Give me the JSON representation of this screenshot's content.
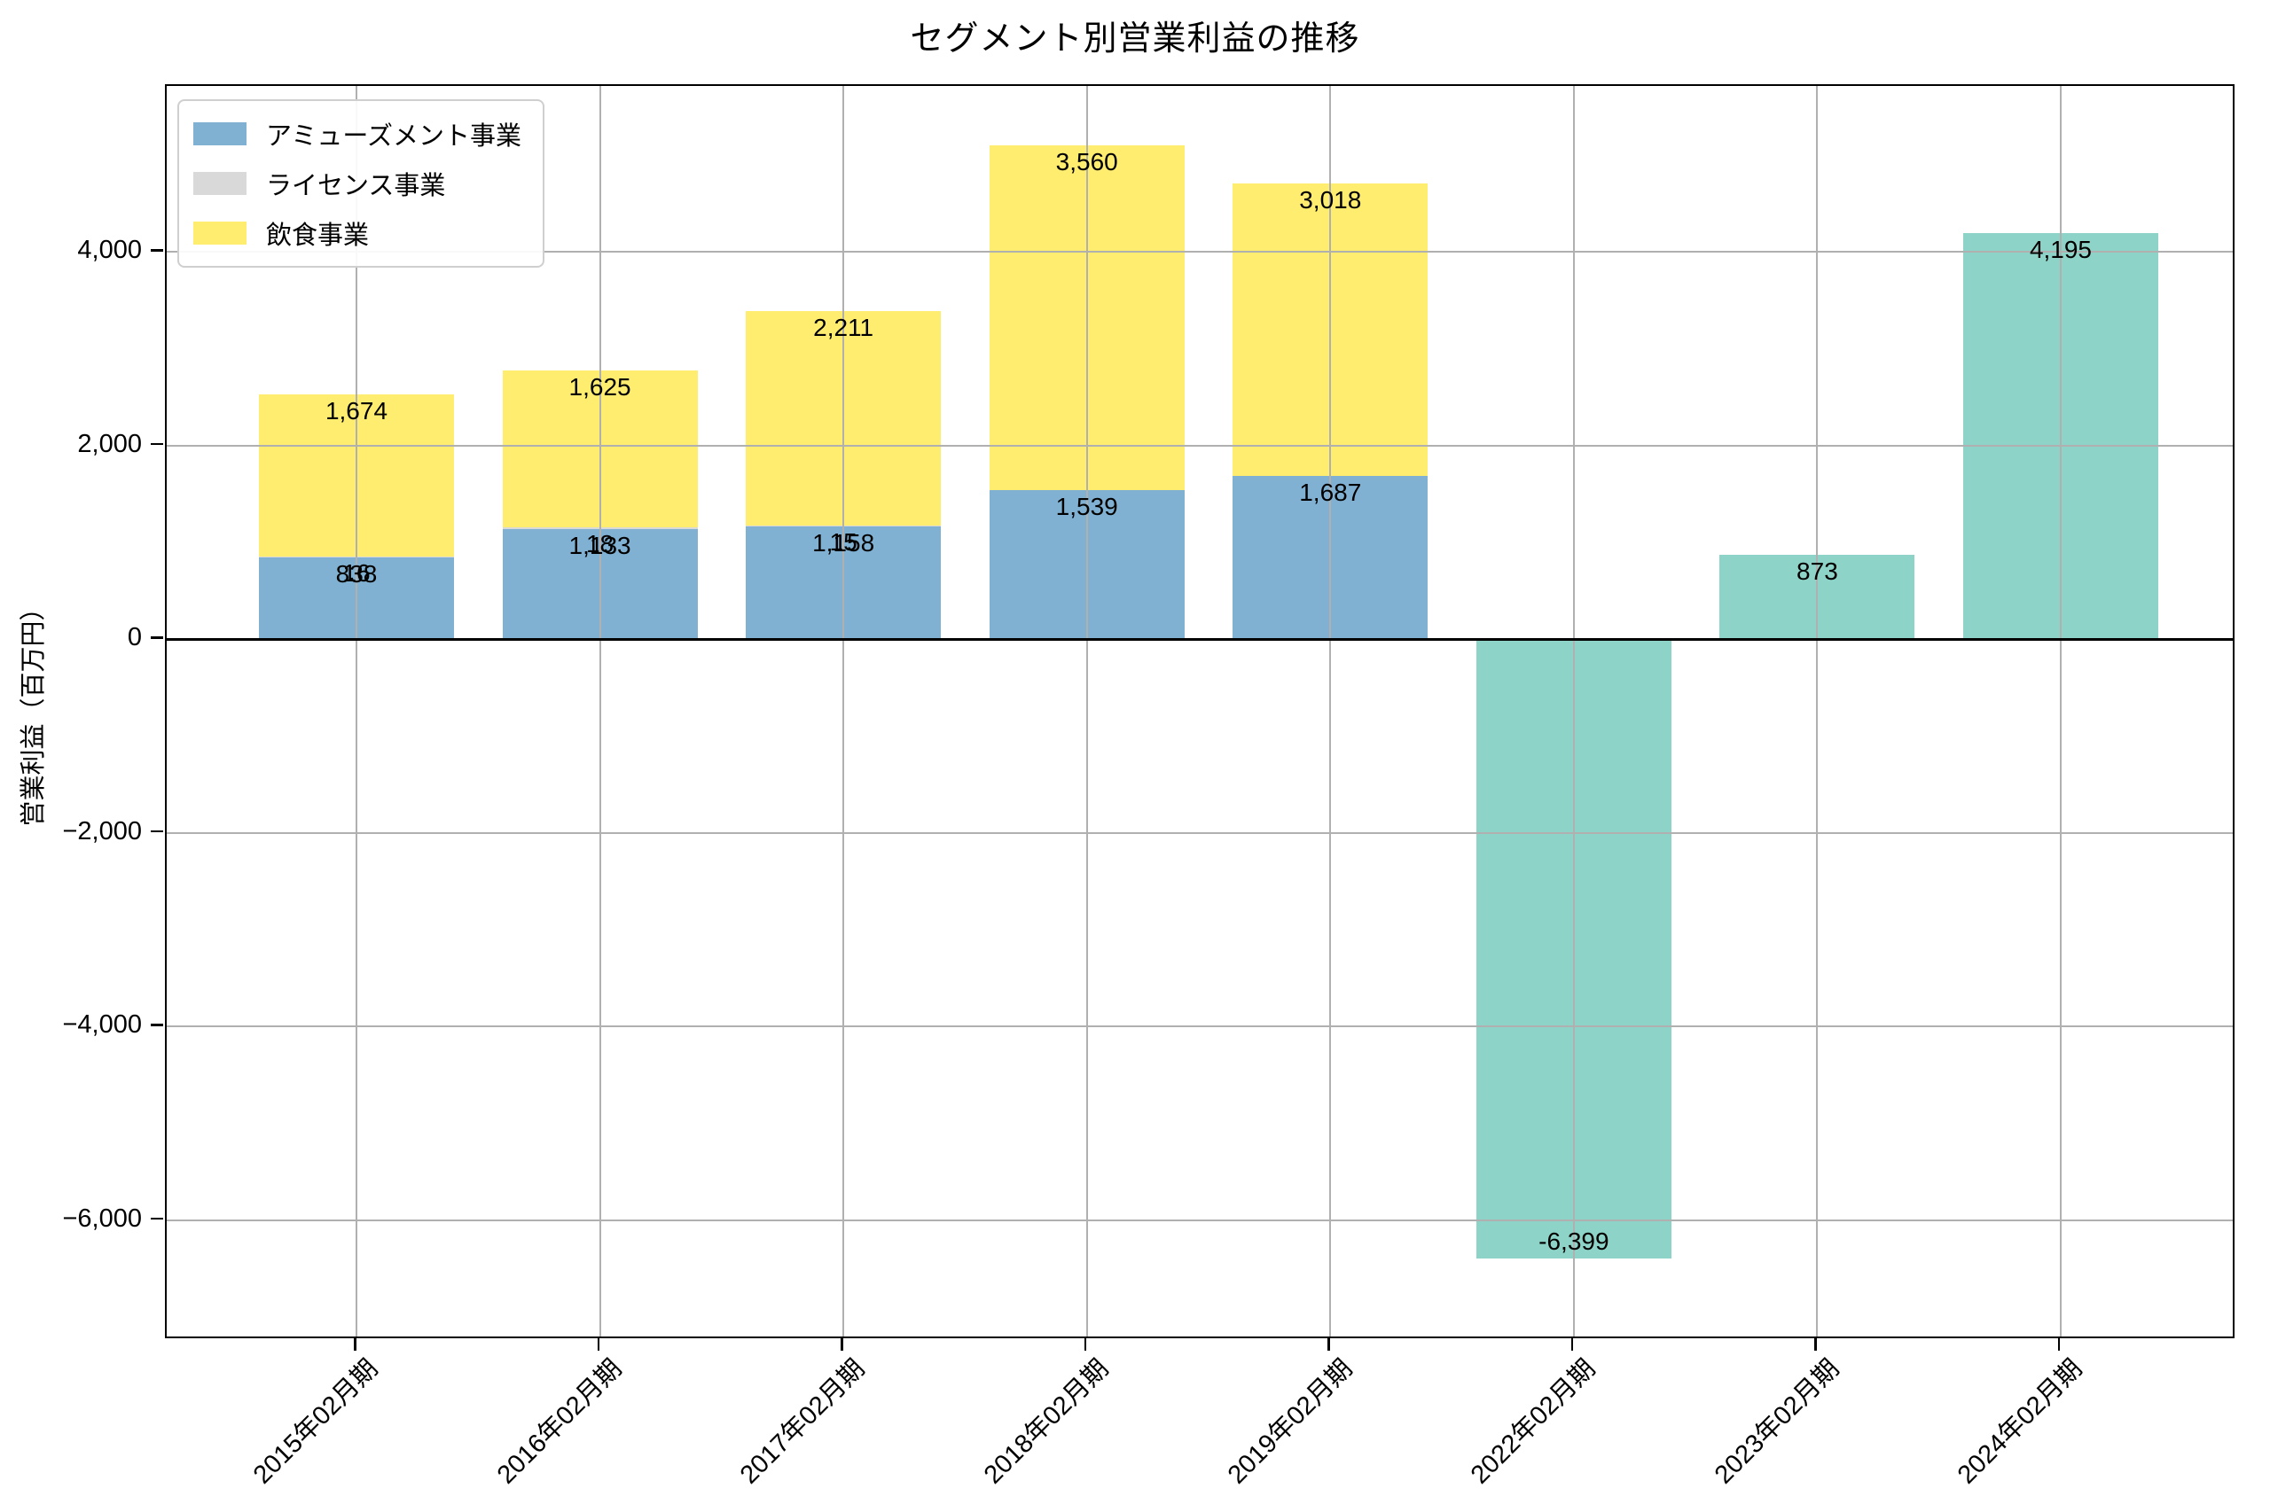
{
  "title": "セグメント別営業利益の推移",
  "y_axis": {
    "label": "営業利益（百万円）",
    "tick_labels": [
      "4,000",
      "2,000",
      "0",
      "−2,000",
      "−4,000",
      "−6,000"
    ],
    "tick_values": [
      4000,
      2000,
      0,
      -2000,
      -4000,
      -6000
    ]
  },
  "legend": {
    "items": [
      {
        "label": "アミューズメント事業",
        "color": "#80b1d3"
      },
      {
        "label": "ライセンス事業",
        "color": "#d9d9d9"
      },
      {
        "label": "飲食事業",
        "color": "#ffed6f"
      }
    ]
  },
  "chart_data": {
    "type": "bar",
    "stacked": true,
    "title": "セグメント別営業利益の推移",
    "xlabel": "",
    "ylabel": "営業利益（百万円）",
    "categories": [
      "2015年02月期",
      "2016年02月期",
      "2017年02月期",
      "2018年02月期",
      "2019年02月期",
      "2022年02月期",
      "2023年02月期",
      "2024年02月期"
    ],
    "series": [
      {
        "name": "アミューズメント事業",
        "color": "#80b1d3",
        "in_legend": true,
        "values": [
          838,
          1133,
          1158,
          1539,
          1687,
          null,
          null,
          null
        ]
      },
      {
        "name": "ライセンス事業",
        "color": "#d9d9d9",
        "in_legend": true,
        "values": [
          16,
          18,
          15,
          null,
          null,
          null,
          null,
          null
        ]
      },
      {
        "name": "飲食事業",
        "color": "#ffed6f",
        "in_legend": true,
        "values": [
          1674,
          1625,
          2211,
          3560,
          3018,
          null,
          null,
          null
        ]
      },
      {
        "name": "",
        "color": "#8dd3c7",
        "in_legend": false,
        "values": [
          null,
          null,
          null,
          null,
          null,
          -6399,
          873,
          4195
        ]
      }
    ],
    "bar_value_labels": {
      "アミューズメント事業": [
        "838",
        "1,133",
        "1,158",
        "1,539",
        "1,687"
      ],
      "ライセンス事業": [
        "16",
        "18",
        "15"
      ],
      "飲食事業": [
        "1,674",
        "1,625",
        "2,211",
        "3,560",
        "3,018"
      ],
      "unnamed_teal": [
        "-6,399",
        "873",
        "4,195"
      ]
    },
    "ylim": [
      -7240,
      5715
    ],
    "grid": true,
    "grid_color": "#b0b0b0",
    "legend_position": "upper left"
  }
}
